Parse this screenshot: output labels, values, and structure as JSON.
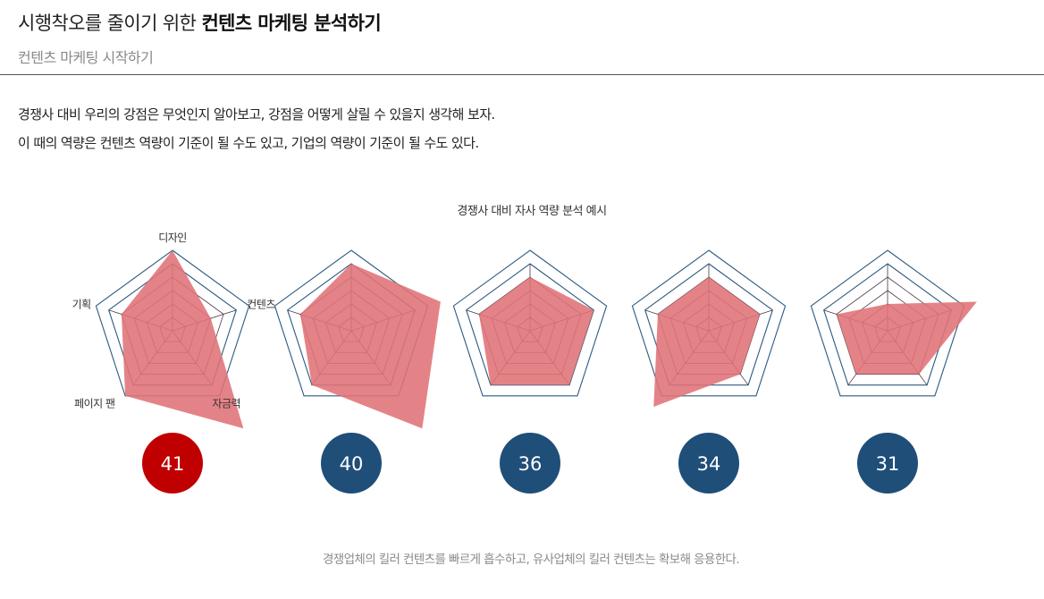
{
  "header": {
    "title_light": "시행착오를 줄이기 위한 ",
    "title_bold": "컨텐츠 마케팅 분석하기",
    "subtitle": "컨텐츠 마케팅 시작하기"
  },
  "description": [
    "경쟁사 대비 우리의 강점은 무엇인지 알아보고, 강점을 어떻게 살릴 수 있을지 생각해 보자.",
    "이 때의 역량은 컨텐츠 역량이 기준이 될 수도 있고, 기업의 역량이 기준이 될 수도 있다."
  ],
  "footer": "경쟁업체의 킬러 컨텐츠를 빠르게 흡수하고, 유사업체의 킬러 컨텐츠는 확보해 응용한다.",
  "colors": {
    "fill": "#e07276",
    "grid_inner": "#4a3848",
    "grid_outer": "#2c5a82",
    "highlight_circle": "#c00000",
    "circle": "#1f4e79"
  },
  "chart_data": {
    "type": "radar",
    "title": "경쟁사 대비 자사 역량 분석 예시",
    "axes": [
      "디자인",
      "컨텐츠",
      "자금력",
      "페이지 팬",
      "기획"
    ],
    "rmax": 6,
    "ring_levels": [
      1,
      2,
      3,
      4,
      5,
      6
    ],
    "series": [
      {
        "values": [
          6,
          3,
          9,
          6,
          4
        ],
        "score": "41",
        "highlight": true
      },
      {
        "values": [
          5,
          7,
          9,
          5,
          4
        ],
        "score": "40",
        "highlight": false
      },
      {
        "values": [
          4,
          5,
          5,
          5,
          4
        ],
        "score": "36",
        "highlight": false
      },
      {
        "values": [
          4,
          4,
          4,
          7,
          4
        ],
        "score": "34",
        "highlight": false
      },
      {
        "values": [
          2,
          7,
          4,
          4,
          4
        ],
        "score": "31",
        "highlight": false
      }
    ]
  }
}
